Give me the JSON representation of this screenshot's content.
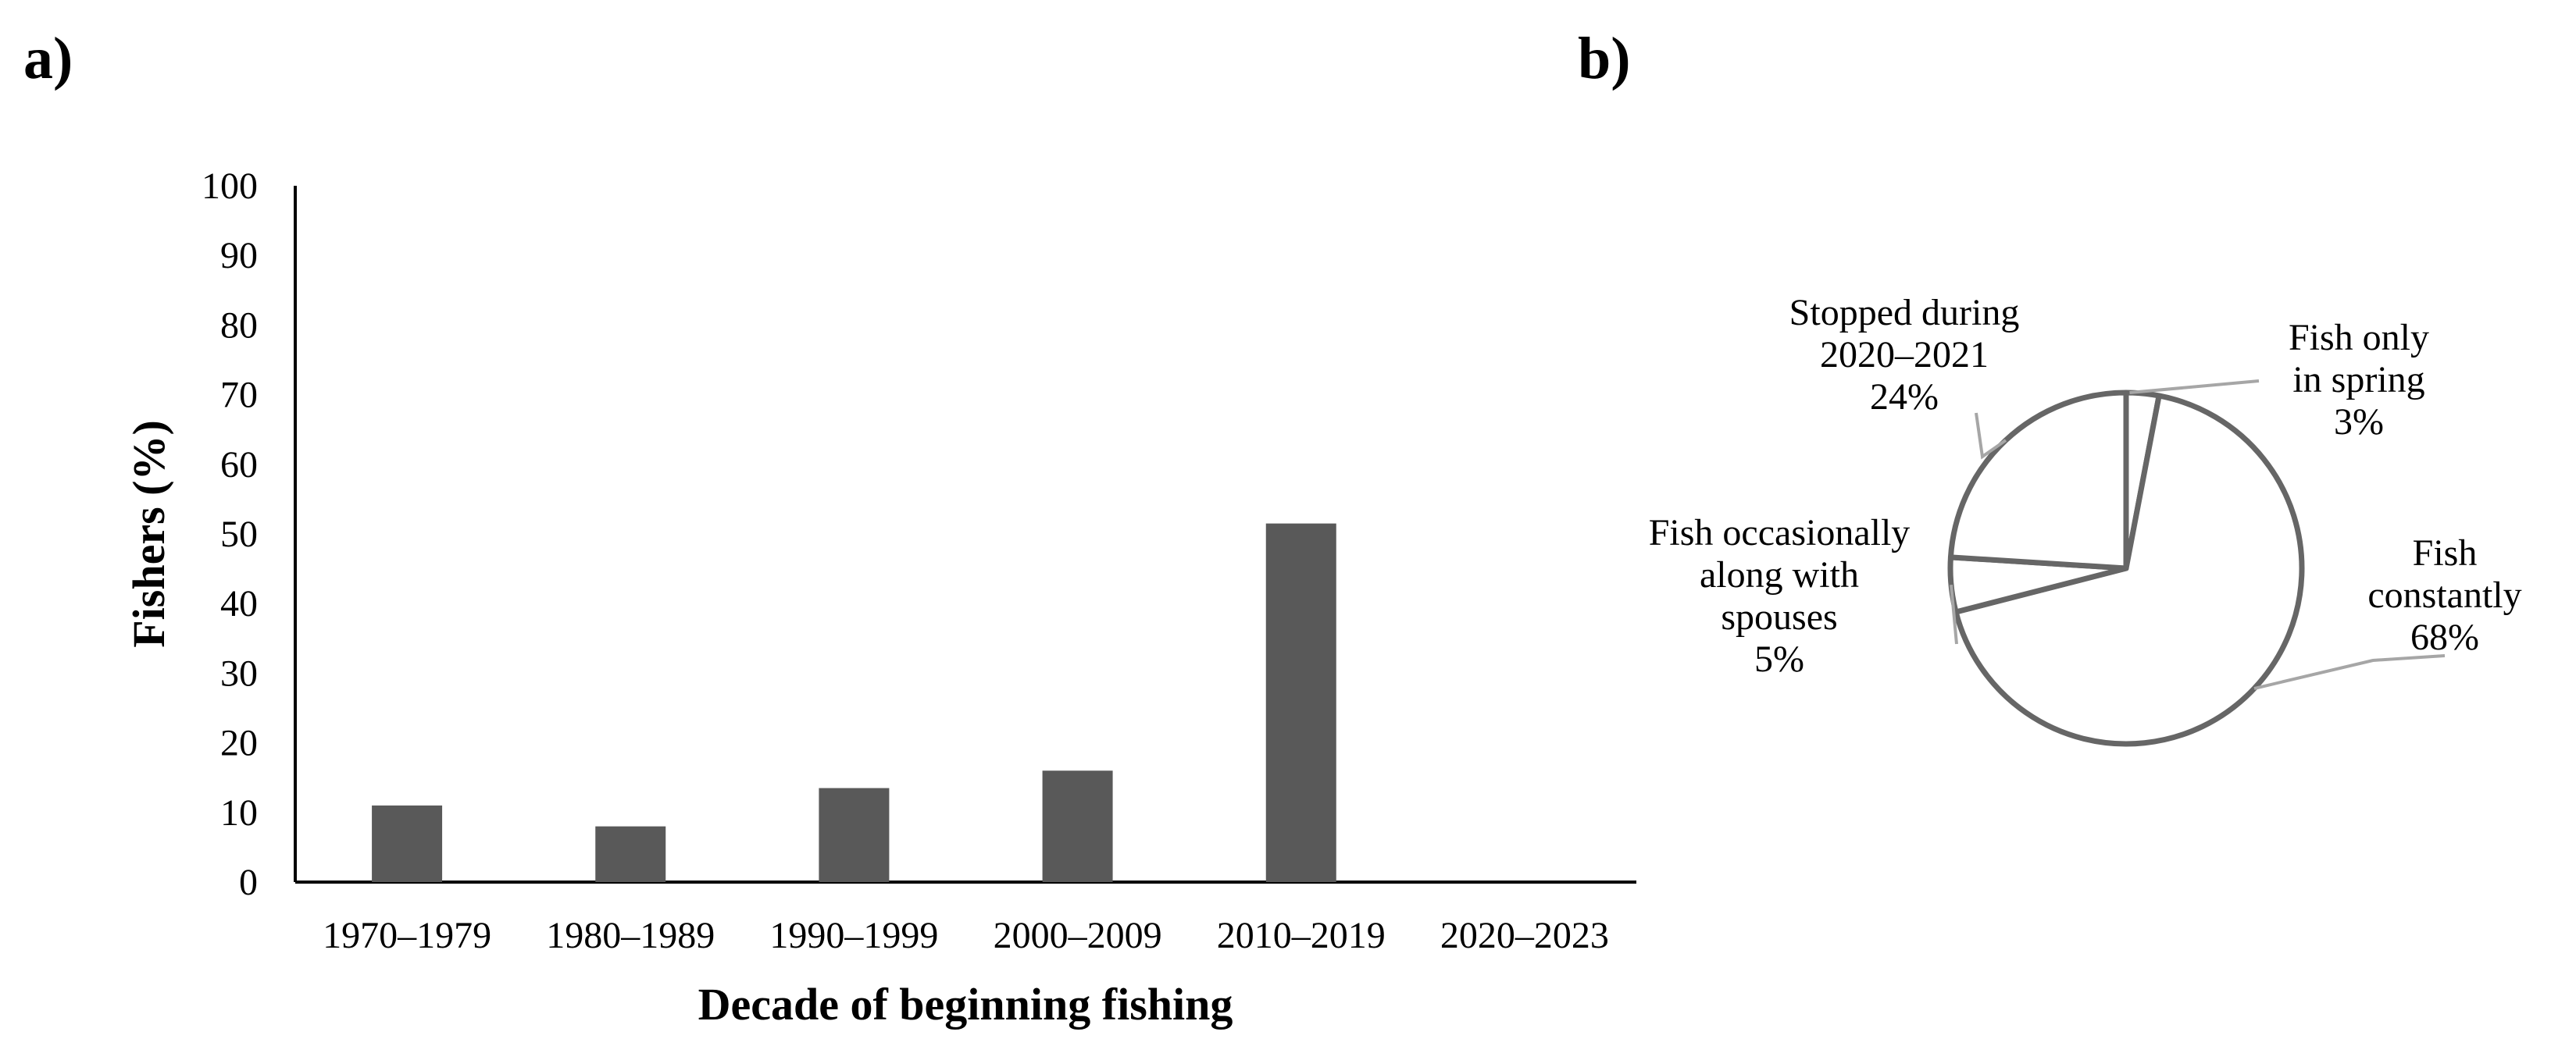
{
  "panels": {
    "a_label": "a)",
    "b_label": "b)"
  },
  "colors": {
    "bar": "#595959",
    "axis": "#000000",
    "pie_edge": "#666666",
    "leader": "#a6a6a6"
  },
  "chart_data": [
    {
      "type": "bar",
      "panel": "a)",
      "title": "",
      "xlabel": "Decade of beginning fishing",
      "ylabel": "Fishers (%)",
      "ylim": [
        0,
        100
      ],
      "yticks": [
        0,
        10,
        20,
        30,
        40,
        50,
        60,
        70,
        80,
        90,
        100
      ],
      "grid": false,
      "legend": "none",
      "categories": [
        "1970–1979",
        "1980–1989",
        "1990–1999",
        "2000–2009",
        "2010–2019",
        "2020–2023"
      ],
      "values": [
        11,
        8,
        13.5,
        16,
        51.5,
        0
      ]
    },
    {
      "type": "pie",
      "panel": "b)",
      "title": "",
      "legend": "none",
      "slices": [
        {
          "label": [
            "Fish only",
            "in spring",
            "3%"
          ],
          "value": 3
        },
        {
          "label": [
            "Fish",
            "constantly",
            "68%"
          ],
          "value": 68
        },
        {
          "label": [
            "Fish occasionally",
            "along with",
            "spouses",
            "5%"
          ],
          "value": 5
        },
        {
          "label": [
            "Stopped during",
            "2020–2021",
            "24%"
          ],
          "value": 24
        }
      ]
    }
  ]
}
